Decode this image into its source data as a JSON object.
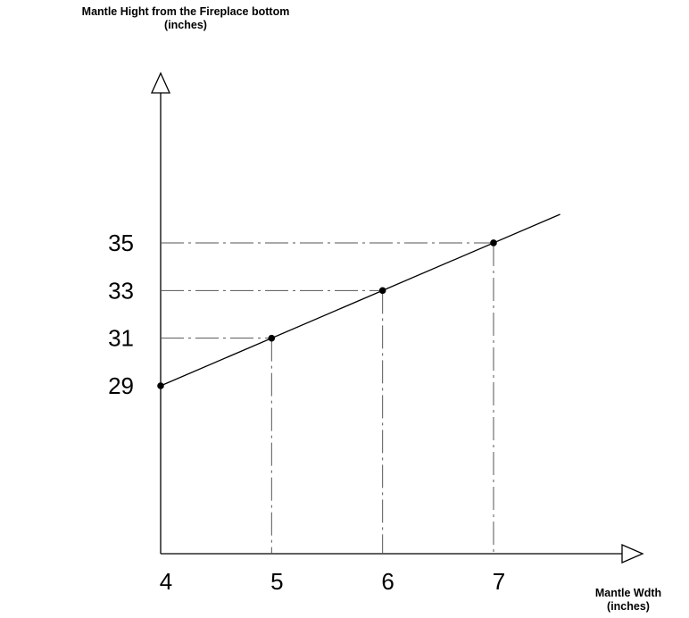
{
  "chart_data": {
    "type": "line",
    "ylabel": "Mantle Hight from the Fireplace bottom",
    "ylabel_unit": "(inches)",
    "xlabel": "Mantle Wdth",
    "xlabel_unit": "(inches)",
    "x_ticks": [
      "4",
      "5",
      "6",
      "7"
    ],
    "y_ticks": [
      "29",
      "31",
      "33",
      "35"
    ],
    "points": [
      {
        "x": 4,
        "y": 29
      },
      {
        "x": 5,
        "y": 31
      },
      {
        "x": 6,
        "y": 33
      },
      {
        "x": 7,
        "y": 35
      }
    ],
    "line_extends_to_x": 7.6,
    "guide_lines": "dash-dot",
    "grid": false,
    "legend": "none",
    "colors": {
      "line": "#000000",
      "guides": "#555555",
      "points": "#000000"
    }
  }
}
